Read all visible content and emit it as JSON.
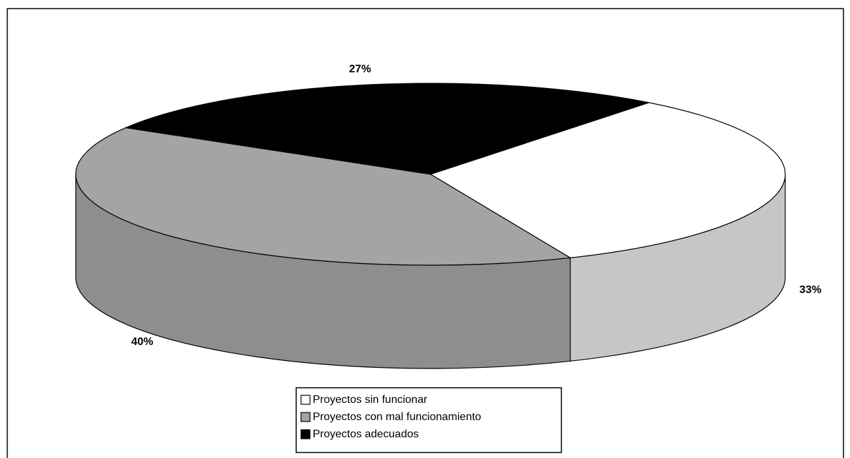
{
  "chart_data": {
    "type": "pie",
    "categories": [
      "Proyectos sin funcionar",
      "Proyectos con mal funcionamiento",
      "Proyectos adecuados"
    ],
    "values": [
      33,
      40,
      27
    ],
    "value_labels": [
      "33%",
      "40%",
      "27%"
    ],
    "colors": [
      "#ffffff",
      "#a4a4a4",
      "#000000"
    ],
    "legend": "bottom"
  }
}
